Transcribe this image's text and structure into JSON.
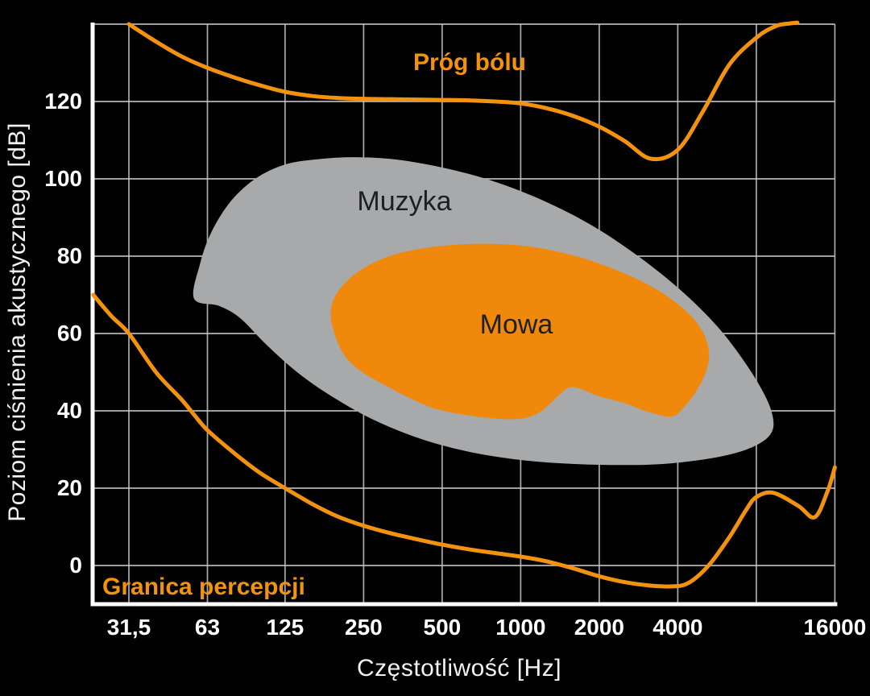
{
  "figure": {
    "background_color": "#010101",
    "grid_color": "#c7c9cb",
    "axis_color": "#ffffff",
    "tick_text_color": "#ffffff",
    "region_label_color": "#1e1f21"
  },
  "chart_data": {
    "type": "line",
    "title": "",
    "xlabel": "Częstotliwość [Hz]",
    "ylabel": "Poziom ciśnienia akustycznego [dB]",
    "x_scale": "log2",
    "xlim_hz": [
      23,
      16000
    ],
    "ylim_db": [
      -10,
      140
    ],
    "grid": true,
    "x_gridlines_hz": [
      31.5,
      63,
      125,
      250,
      500,
      1000,
      2000,
      4000,
      8000,
      16000
    ],
    "y_gridlines_db": [
      0,
      20,
      40,
      60,
      80,
      100,
      120,
      140
    ],
    "x_tick_labels": [
      {
        "hz": 31.5,
        "label": "31,5"
      },
      {
        "hz": 63,
        "label": "63"
      },
      {
        "hz": 125,
        "label": "125"
      },
      {
        "hz": 250,
        "label": "250"
      },
      {
        "hz": 500,
        "label": "500"
      },
      {
        "hz": 1000,
        "label": "1000"
      },
      {
        "hz": 2000,
        "label": "2000"
      },
      {
        "hz": 4000,
        "label": "4000"
      },
      {
        "hz": 16000,
        "label": "16000"
      }
    ],
    "y_tick_labels": [
      {
        "db": 0,
        "label": "0"
      },
      {
        "db": 20,
        "label": "20"
      },
      {
        "db": 40,
        "label": "40"
      },
      {
        "db": 60,
        "label": "60"
      },
      {
        "db": 80,
        "label": "80"
      },
      {
        "db": 100,
        "label": "100"
      },
      {
        "db": 120,
        "label": "120"
      }
    ],
    "series": [
      {
        "name": "Próg bólu",
        "color": "#f2920f",
        "stroke_width": 5,
        "points_hz_db": [
          [
            31.5,
            140
          ],
          [
            40,
            135.5
          ],
          [
            50,
            131.7
          ],
          [
            63,
            128.7
          ],
          [
            80,
            126.2
          ],
          [
            100,
            124.2
          ],
          [
            125,
            122.5
          ],
          [
            160,
            121.4
          ],
          [
            200,
            120.9
          ],
          [
            250,
            120.7
          ],
          [
            315,
            120.6
          ],
          [
            400,
            120.5
          ],
          [
            500,
            120.4
          ],
          [
            630,
            120.3
          ],
          [
            800,
            120
          ],
          [
            1000,
            119.5
          ],
          [
            1250,
            118.3
          ],
          [
            1600,
            116.2
          ],
          [
            2000,
            113.5
          ],
          [
            2500,
            109.8
          ],
          [
            3150,
            105.2
          ],
          [
            4000,
            107.5
          ],
          [
            5000,
            117.5
          ],
          [
            6300,
            129.5
          ],
          [
            8000,
            136.5
          ],
          [
            9500,
            139.5
          ],
          [
            10800,
            140.2
          ],
          [
            11500,
            140.4
          ]
        ]
      },
      {
        "name": "Granica percepcji",
        "color": "#f2920f",
        "stroke_width": 5,
        "points_hz_db": [
          [
            23,
            70
          ],
          [
            27,
            64.5
          ],
          [
            31.5,
            60
          ],
          [
            40,
            50
          ],
          [
            50,
            43
          ],
          [
            56,
            39
          ],
          [
            63,
            35
          ],
          [
            80,
            29
          ],
          [
            100,
            24
          ],
          [
            125,
            20
          ],
          [
            160,
            15.8
          ],
          [
            200,
            12.6
          ],
          [
            250,
            10.3
          ],
          [
            315,
            8.4
          ],
          [
            400,
            6.8
          ],
          [
            500,
            5.4
          ],
          [
            630,
            4.2
          ],
          [
            800,
            3.2
          ],
          [
            1000,
            2.3
          ],
          [
            1250,
            1.1
          ],
          [
            1600,
            -0.8
          ],
          [
            2000,
            -2.8
          ],
          [
            2500,
            -4.3
          ],
          [
            3150,
            -5.2
          ],
          [
            3800,
            -5.4
          ],
          [
            4400,
            -4.5
          ],
          [
            5250,
            0
          ],
          [
            6300,
            7.3
          ],
          [
            7300,
            14.3
          ],
          [
            8000,
            17.7
          ],
          [
            9300,
            18.8
          ],
          [
            11600,
            15.4
          ],
          [
            13400,
            12.5
          ],
          [
            15000,
            19.2
          ],
          [
            16000,
            25.4
          ]
        ]
      }
    ],
    "regions": [
      {
        "name": "Muzyka",
        "fill": "#a7a9ab",
        "outline_hz_db": [
          [
            56,
            69
          ],
          [
            59,
            78
          ],
          [
            65,
            86
          ],
          [
            77,
            94
          ],
          [
            96,
            100
          ],
          [
            125,
            103.7
          ],
          [
            169,
            105.1
          ],
          [
            233,
            105.6
          ],
          [
            333,
            105
          ],
          [
            495,
            103
          ],
          [
            760,
            99.7
          ],
          [
            1190,
            94.7
          ],
          [
            1870,
            88
          ],
          [
            2820,
            80
          ],
          [
            4090,
            71.3
          ],
          [
            5640,
            62
          ],
          [
            7240,
            52.5
          ],
          [
            8660,
            43.8
          ],
          [
            9280,
            37.9
          ],
          [
            9100,
            34.1
          ],
          [
            8050,
            31.2
          ],
          [
            6500,
            28.9
          ],
          [
            4880,
            27.3
          ],
          [
            3410,
            26.2
          ],
          [
            2220,
            26
          ],
          [
            1445,
            26.4
          ],
          [
            940,
            27.5
          ],
          [
            614,
            29.6
          ],
          [
            400,
            33.1
          ],
          [
            269,
            37.9
          ],
          [
            188,
            43.8
          ],
          [
            139,
            50
          ],
          [
            106,
            57.1
          ],
          [
            84,
            64
          ],
          [
            70,
            67.1
          ]
        ]
      },
      {
        "name": "Mowa",
        "fill": "#f0890b",
        "outline_hz_db": [
          [
            187,
            65.5
          ],
          [
            200,
            71
          ],
          [
            242,
            76.3
          ],
          [
            323,
            80.3
          ],
          [
            461,
            82.4
          ],
          [
            685,
            83.2
          ],
          [
            1050,
            82.6
          ],
          [
            1610,
            80.1
          ],
          [
            2390,
            76.1
          ],
          [
            3340,
            71.3
          ],
          [
            4320,
            65.7
          ],
          [
            4980,
            60.5
          ],
          [
            5270,
            55
          ],
          [
            5120,
            50
          ],
          [
            4700,
            45
          ],
          [
            4230,
            41
          ],
          [
            3790,
            38.5
          ],
          [
            3060,
            39.8
          ],
          [
            2470,
            42.1
          ],
          [
            1990,
            43.8
          ],
          [
            1710,
            45.6
          ],
          [
            1540,
            46.1
          ],
          [
            1410,
            44.2
          ],
          [
            1180,
            39.6
          ],
          [
            968,
            37.9
          ],
          [
            685,
            38.5
          ],
          [
            480,
            40.4
          ],
          [
            376,
            43.3
          ],
          [
            297,
            46.9
          ],
          [
            247,
            50
          ],
          [
            214,
            53.8
          ],
          [
            195,
            59.2
          ]
        ]
      }
    ],
    "legend": "none"
  }
}
